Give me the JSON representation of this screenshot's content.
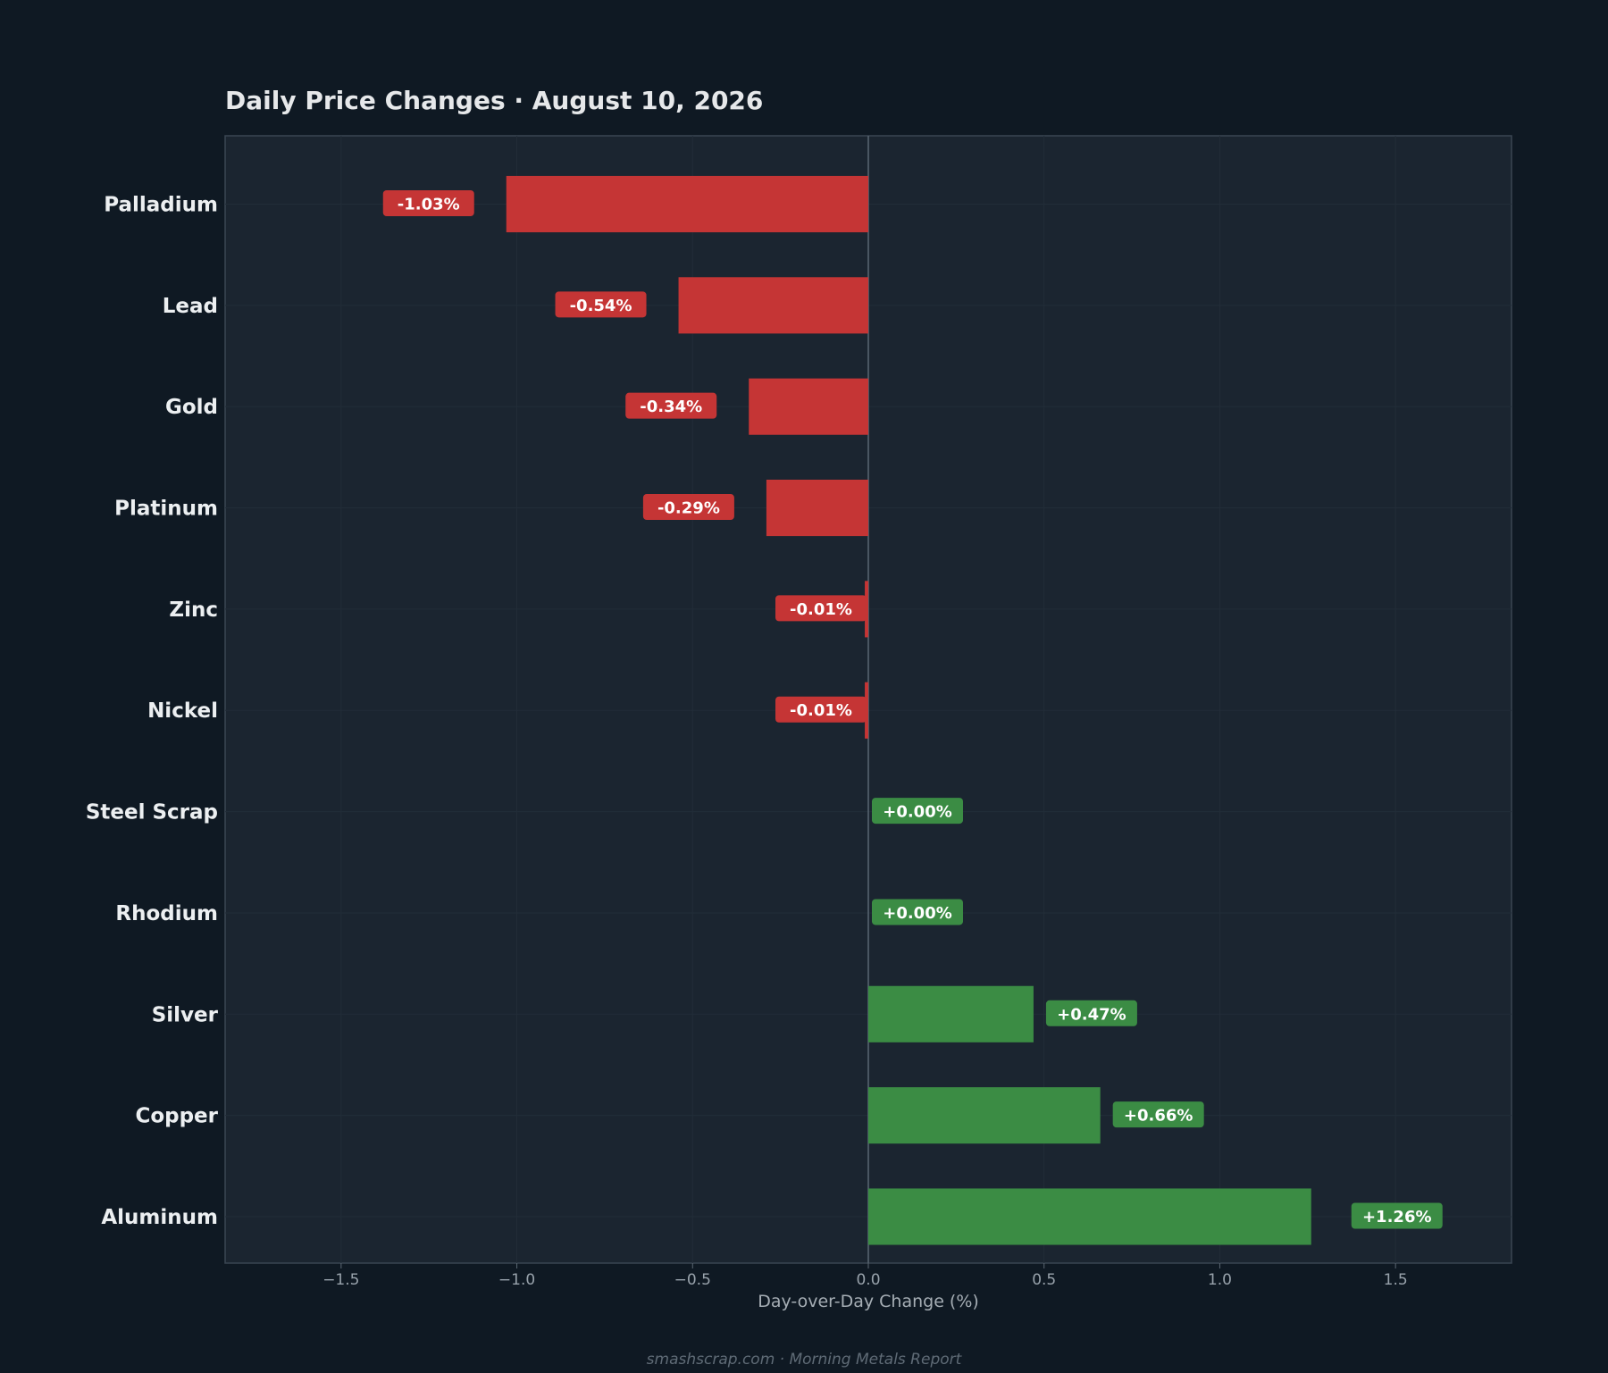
{
  "chart_data": {
    "type": "bar",
    "orientation": "horizontal",
    "title": "Daily Price Changes  ·  August 10, 2026",
    "xlabel": "Day-over-Day Change (%)",
    "ylabel": "",
    "xlim": [
      -1.83,
      1.83
    ],
    "xticks": [
      -1.5,
      -1.0,
      -0.5,
      0.0,
      0.5,
      1.0,
      1.5
    ],
    "xtick_labels": [
      "−1.5",
      "−1.0",
      "−0.5",
      "0.0",
      "0.5",
      "1.0",
      "1.5"
    ],
    "grid": false,
    "categories": [
      "Palladium",
      "Lead",
      "Gold",
      "Platinum",
      "Zinc",
      "Nickel",
      "Steel Scrap",
      "Rhodium",
      "Silver",
      "Copper",
      "Aluminum"
    ],
    "values": [
      -1.03,
      -0.54,
      -0.34,
      -0.29,
      -0.01,
      -0.01,
      0.0,
      0.0,
      0.47,
      0.66,
      1.26
    ],
    "data_labels": [
      "-1.03%",
      "-0.54%",
      "-0.34%",
      "-0.29%",
      "-0.01%",
      "-0.01%",
      "+0.00%",
      "+0.00%",
      "+0.47%",
      "+0.66%",
      "+1.26%"
    ],
    "colors": {
      "negative": "#c53535",
      "positive": "#3b8c44",
      "background": "#0f1923",
      "plot_background": "#1b2530",
      "frame": "#3a4652"
    }
  },
  "footer": "smashscrap.com  ·  Morning Metals Report"
}
